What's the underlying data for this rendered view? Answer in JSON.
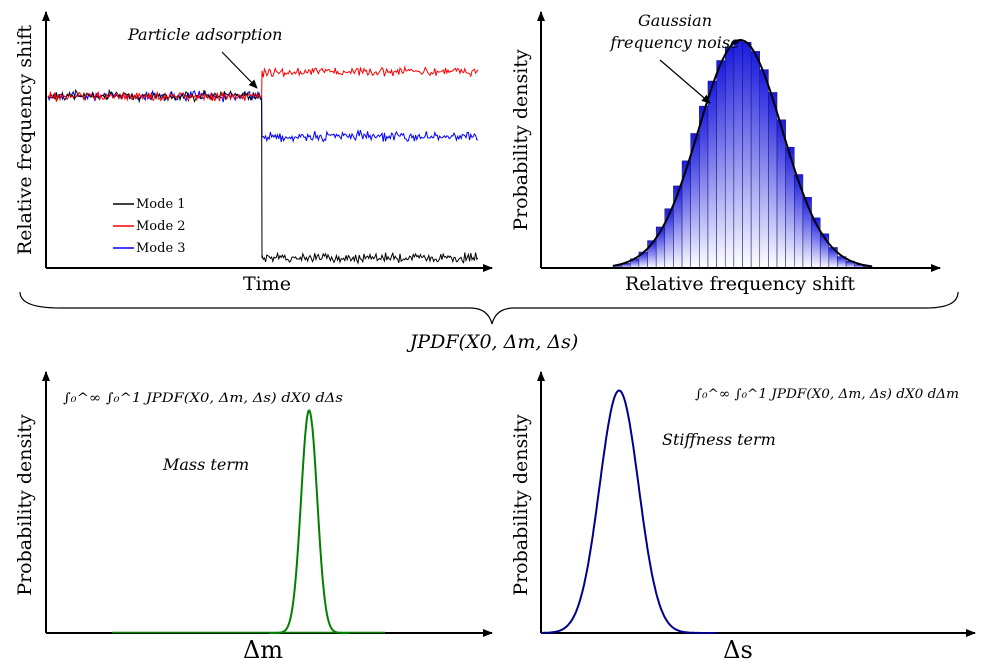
{
  "panels": {
    "tl": {
      "xlabel": "Time",
      "ylabel": "Relative frequency shift",
      "annotation": "Particle adsorption",
      "legend": [
        "Mode 1",
        "Mode 2",
        "Mode 3"
      ]
    },
    "tr": {
      "xlabel": "Relative frequency shift",
      "ylabel": "Probability density",
      "annotation_line1": "Gaussian",
      "annotation_line2": "frequency noise"
    },
    "bl": {
      "xlabel": "Δm",
      "ylabel": "Probability density",
      "annotation": "Mass term",
      "formula": "∫₀^∞ ∫₀^1 JPDF(X0, Δm, Δs) dX0 dΔs"
    },
    "br": {
      "xlabel": "Δs",
      "ylabel": "Probability density",
      "annotation": "Stiffness term",
      "formula": "∫₀^∞ ∫₀^1 JPDF(X0, Δm, Δs) dX0 dΔm"
    }
  },
  "brace_label": "JPDF(X0, Δm, Δs)",
  "colors": {
    "mode1": "#000000",
    "mode2": "#ff0000",
    "mode3": "#0000ff",
    "mass": "#008000",
    "stiffness": "#00008b",
    "hist": "#1a1adf"
  },
  "chart_data": [
    {
      "type": "line",
      "title": "",
      "xlabel": "Time",
      "ylabel": "Relative frequency shift",
      "events": [
        {
          "label": "Particle adsorption",
          "x": 0.5
        }
      ],
      "series": [
        {
          "name": "Mode 1",
          "before": 0,
          "after": -1.0
        },
        {
          "name": "Mode 2",
          "before": 0,
          "after": 0.15
        },
        {
          "name": "Mode 3",
          "before": 0,
          "after": -0.25
        }
      ]
    },
    {
      "type": "bar",
      "title": "",
      "xlabel": "Relative frequency shift",
      "ylabel": "Probability density",
      "annotation": "Gaussian frequency noise",
      "bins": 30,
      "values": [
        0.01,
        0.02,
        0.04,
        0.07,
        0.12,
        0.18,
        0.26,
        0.36,
        0.47,
        0.59,
        0.71,
        0.82,
        0.91,
        0.97,
        1.0,
        0.99,
        0.95,
        0.87,
        0.77,
        0.65,
        0.53,
        0.41,
        0.31,
        0.22,
        0.15,
        0.09,
        0.05,
        0.03,
        0.015,
        0.008
      ]
    },
    {
      "type": "line",
      "title": "",
      "xlabel": "Δm",
      "ylabel": "Probability density",
      "annotation": "Mass term",
      "peak_x": 0.59,
      "peak_height": 0.89,
      "width": 0.018
    },
    {
      "type": "line",
      "title": "",
      "xlabel": "Δs",
      "ylabel": "Probability density",
      "annotation": "Stiffness term",
      "peak_x": 0.18,
      "peak_height": 0.97,
      "width": 0.045
    }
  ]
}
